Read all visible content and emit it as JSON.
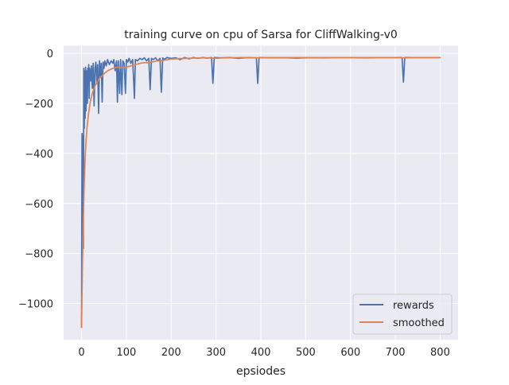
{
  "chart_data": {
    "type": "line",
    "title": "training curve on cpu of Sarsa for CliffWalking-v0",
    "xlabel": "epsiodes",
    "ylabel": "",
    "xlim": [
      -40,
      840
    ],
    "ylim": [
      -1145,
      30
    ],
    "xticks": [
      0,
      100,
      200,
      300,
      400,
      500,
      600,
      700,
      800
    ],
    "xtick_labels": [
      "0",
      "100",
      "200",
      "300",
      "400",
      "500",
      "600",
      "700",
      "800"
    ],
    "yticks": [
      0,
      -200,
      -400,
      -600,
      -800,
      -1000
    ],
    "ytick_labels": [
      "0",
      "−200",
      "−400",
      "−600",
      "−800",
      "−1000"
    ],
    "grid": true,
    "legend_position": "lower right",
    "series": [
      {
        "name": "rewards",
        "color": "#4c72b0",
        "points": [
          [
            0,
            -1095
          ],
          [
            1,
            -320
          ],
          [
            2,
            -800
          ],
          [
            3,
            -330
          ],
          [
            4,
            -780
          ],
          [
            5,
            -60
          ],
          [
            6,
            -300
          ],
          [
            7,
            -70
          ],
          [
            8,
            -260
          ],
          [
            9,
            -55
          ],
          [
            10,
            -230
          ],
          [
            11,
            -80
          ],
          [
            12,
            -70
          ],
          [
            13,
            -200
          ],
          [
            14,
            -60
          ],
          [
            15,
            -120
          ],
          [
            16,
            -45
          ],
          [
            17,
            -180
          ],
          [
            18,
            -60
          ],
          [
            20,
            -110
          ],
          [
            22,
            -50
          ],
          [
            24,
            -140
          ],
          [
            26,
            -40
          ],
          [
            28,
            -210
          ],
          [
            30,
            -60
          ],
          [
            32,
            -35
          ],
          [
            34,
            -120
          ],
          [
            36,
            -45
          ],
          [
            38,
            -240
          ],
          [
            40,
            -30
          ],
          [
            42,
            -90
          ],
          [
            44,
            -40
          ],
          [
            46,
            -195
          ],
          [
            48,
            -35
          ],
          [
            50,
            -60
          ],
          [
            52,
            -30
          ],
          [
            55,
            -50
          ],
          [
            58,
            -25
          ],
          [
            62,
            -45
          ],
          [
            66,
            -30
          ],
          [
            70,
            -40
          ],
          [
            72,
            -25
          ],
          [
            75,
            -70
          ],
          [
            78,
            -30
          ],
          [
            80,
            -195
          ],
          [
            82,
            -30
          ],
          [
            85,
            -160
          ],
          [
            87,
            -25
          ],
          [
            90,
            -165
          ],
          [
            92,
            -30
          ],
          [
            95,
            -40
          ],
          [
            98,
            -160
          ],
          [
            100,
            -25
          ],
          [
            103,
            -35
          ],
          [
            106,
            -20
          ],
          [
            110,
            -40
          ],
          [
            114,
            -25
          ],
          [
            118,
            -180
          ],
          [
            120,
            -25
          ],
          [
            125,
            -30
          ],
          [
            130,
            -20
          ],
          [
            135,
            -25
          ],
          [
            140,
            -18
          ],
          [
            145,
            -30
          ],
          [
            150,
            -20
          ],
          [
            153,
            -145
          ],
          [
            156,
            -20
          ],
          [
            160,
            -25
          ],
          [
            165,
            -18
          ],
          [
            170,
            -30
          ],
          [
            175,
            -20
          ],
          [
            178,
            -155
          ],
          [
            181,
            -18
          ],
          [
            185,
            -25
          ],
          [
            190,
            -17
          ],
          [
            200,
            -20
          ],
          [
            210,
            -18
          ],
          [
            220,
            -25
          ],
          [
            230,
            -17
          ],
          [
            240,
            -22
          ],
          [
            250,
            -17
          ],
          [
            260,
            -20
          ],
          [
            270,
            -17
          ],
          [
            280,
            -19
          ],
          [
            290,
            -17
          ],
          [
            293,
            -120
          ],
          [
            296,
            -17
          ],
          [
            310,
            -18
          ],
          [
            330,
            -17
          ],
          [
            350,
            -20
          ],
          [
            370,
            -17
          ],
          [
            390,
            -18
          ],
          [
            393,
            -120
          ],
          [
            396,
            -17
          ],
          [
            420,
            -18
          ],
          [
            450,
            -17
          ],
          [
            480,
            -19
          ],
          [
            510,
            -17
          ],
          [
            540,
            -18
          ],
          [
            570,
            -17
          ],
          [
            600,
            -17
          ],
          [
            630,
            -18
          ],
          [
            660,
            -17
          ],
          [
            690,
            -17
          ],
          [
            715,
            -17
          ],
          [
            718,
            -115
          ],
          [
            721,
            -17
          ],
          [
            750,
            -17
          ],
          [
            780,
            -17
          ],
          [
            800,
            -17
          ]
        ]
      },
      {
        "name": "smoothed",
        "color": "#dd8452",
        "points": [
          [
            0,
            -1095
          ],
          [
            2,
            -850
          ],
          [
            4,
            -660
          ],
          [
            6,
            -520
          ],
          [
            8,
            -420
          ],
          [
            10,
            -350
          ],
          [
            12,
            -300
          ],
          [
            15,
            -250
          ],
          [
            18,
            -210
          ],
          [
            21,
            -180
          ],
          [
            25,
            -155
          ],
          [
            30,
            -130
          ],
          [
            35,
            -115
          ],
          [
            40,
            -100
          ],
          [
            45,
            -92
          ],
          [
            50,
            -82
          ],
          [
            55,
            -74
          ],
          [
            60,
            -68
          ],
          [
            70,
            -60
          ],
          [
            80,
            -55
          ],
          [
            90,
            -58
          ],
          [
            100,
            -55
          ],
          [
            110,
            -50
          ],
          [
            120,
            -45
          ],
          [
            130,
            -40
          ],
          [
            140,
            -37
          ],
          [
            150,
            -38
          ],
          [
            160,
            -34
          ],
          [
            170,
            -30
          ],
          [
            180,
            -29
          ],
          [
            190,
            -26
          ],
          [
            200,
            -23
          ],
          [
            220,
            -21
          ],
          [
            250,
            -19
          ],
          [
            280,
            -18
          ],
          [
            300,
            -20
          ],
          [
            320,
            -18
          ],
          [
            360,
            -17
          ],
          [
            400,
            -18
          ],
          [
            430,
            -17
          ],
          [
            500,
            -17
          ],
          [
            600,
            -17
          ],
          [
            700,
            -17
          ],
          [
            720,
            -18
          ],
          [
            740,
            -17
          ],
          [
            800,
            -17
          ]
        ]
      }
    ]
  }
}
